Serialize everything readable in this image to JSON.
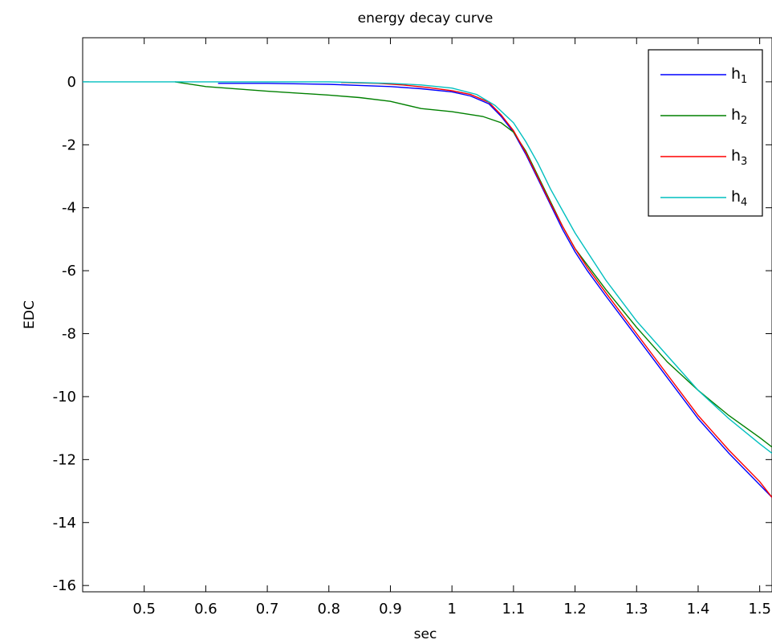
{
  "chart_data": {
    "type": "line",
    "title": "energy decay curve",
    "xlabel": "sec",
    "ylabel": "EDC",
    "xlim": [
      0.4,
      1.52
    ],
    "ylim": [
      -16.2,
      1.4
    ],
    "xticks": [
      0.5,
      0.6,
      0.7,
      0.8,
      0.9,
      1,
      1.1,
      1.2,
      1.3,
      1.4,
      1.5
    ],
    "xtick_labels": [
      "0.5",
      "0.6",
      "0.7",
      "0.8",
      "0.9",
      "1",
      "1.1",
      "1.2",
      "1.3",
      "1.4",
      "1.5"
    ],
    "yticks": [
      0,
      -2,
      -4,
      -6,
      -8,
      -10,
      -12,
      -14,
      -16
    ],
    "ytick_labels": [
      "0",
      "-2",
      "-4",
      "-6",
      "-8",
      "-10",
      "-12",
      "-14",
      "-16"
    ],
    "grid": false,
    "legend_position": "top-right",
    "series": [
      {
        "name": "h",
        "sub": "1",
        "color": "#0000ff",
        "x": [
          0.62,
          0.7,
          0.8,
          0.9,
          0.95,
          1.0,
          1.03,
          1.06,
          1.08,
          1.1,
          1.12,
          1.14,
          1.16,
          1.18,
          1.2,
          1.22,
          1.25,
          1.3,
          1.35,
          1.4,
          1.45,
          1.5,
          1.52
        ],
        "y": [
          -0.05,
          -0.05,
          -0.08,
          -0.15,
          -0.22,
          -0.32,
          -0.45,
          -0.7,
          -1.1,
          -1.6,
          -2.3,
          -3.1,
          -3.9,
          -4.7,
          -5.4,
          -6.0,
          -6.8,
          -8.1,
          -9.4,
          -10.7,
          -11.8,
          -12.8,
          -13.2
        ]
      },
      {
        "name": "h",
        "sub": "2",
        "color": "#008000",
        "x": [
          0.55,
          0.6,
          0.7,
          0.8,
          0.85,
          0.9,
          0.95,
          1.0,
          1.05,
          1.08,
          1.1,
          1.12,
          1.14,
          1.16,
          1.18,
          1.2,
          1.25,
          1.3,
          1.35,
          1.4,
          1.45,
          1.5,
          1.52
        ],
        "y": [
          0.0,
          -0.15,
          -0.3,
          -0.42,
          -0.5,
          -0.62,
          -0.85,
          -0.95,
          -1.1,
          -1.3,
          -1.6,
          -2.2,
          -3.0,
          -3.8,
          -4.6,
          -5.3,
          -6.6,
          -7.8,
          -8.9,
          -9.8,
          -10.6,
          -11.3,
          -11.6
        ]
      },
      {
        "name": "h",
        "sub": "3",
        "color": "#ff0000",
        "x": [
          0.82,
          0.88,
          0.92,
          0.96,
          1.0,
          1.03,
          1.06,
          1.08,
          1.1,
          1.12,
          1.14,
          1.16,
          1.18,
          1.2,
          1.22,
          1.25,
          1.3,
          1.35,
          1.4,
          1.45,
          1.5,
          1.52
        ],
        "y": [
          -0.02,
          -0.05,
          -0.1,
          -0.18,
          -0.28,
          -0.4,
          -0.65,
          -1.05,
          -1.55,
          -2.25,
          -3.05,
          -3.85,
          -4.6,
          -5.3,
          -5.9,
          -6.7,
          -8.0,
          -9.3,
          -10.6,
          -11.7,
          -12.7,
          -13.2
        ]
      },
      {
        "name": "h",
        "sub": "4",
        "color": "#00bfbf",
        "x": [
          0.4,
          0.5,
          0.6,
          0.7,
          0.8,
          0.9,
          0.95,
          1.0,
          1.04,
          1.07,
          1.1,
          1.12,
          1.14,
          1.16,
          1.18,
          1.2,
          1.22,
          1.25,
          1.3,
          1.35,
          1.4,
          1.45,
          1.5,
          1.52
        ],
        "y": [
          0.0,
          0.0,
          0.0,
          0.0,
          0.0,
          -0.05,
          -0.1,
          -0.2,
          -0.4,
          -0.75,
          -1.3,
          -1.9,
          -2.6,
          -3.4,
          -4.1,
          -4.8,
          -5.4,
          -6.3,
          -7.6,
          -8.7,
          -9.8,
          -10.7,
          -11.5,
          -11.8
        ]
      }
    ]
  }
}
